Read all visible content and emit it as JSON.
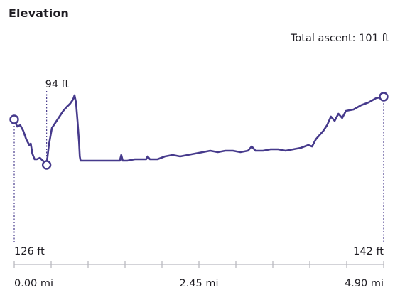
{
  "header": {
    "title": "Elevation",
    "total_ascent": "Total ascent: 101 ft"
  },
  "chart_data": {
    "type": "line",
    "title": "Elevation",
    "xlabel": "",
    "ylabel": "",
    "x_unit": "mi",
    "y_unit": "ft",
    "xlim": [
      0,
      4.9
    ],
    "ylim": [
      85,
      160
    ],
    "grid": false,
    "tick_labels": [
      "0.00 mi",
      "2.45 mi",
      "4.90 mi"
    ],
    "annotations": [
      {
        "label": "126 ft",
        "x": 0.0,
        "y": 126
      },
      {
        "label": "94 ft",
        "x": 0.43,
        "y": 94
      },
      {
        "label": "142 ft",
        "x": 4.9,
        "y": 142
      }
    ],
    "series": [
      {
        "color": "#463a8c",
        "x": [
          0.0,
          0.04,
          0.08,
          0.12,
          0.16,
          0.2,
          0.22,
          0.24,
          0.27,
          0.3,
          0.34,
          0.38,
          0.42,
          0.43,
          0.46,
          0.5,
          0.55,
          0.6,
          0.65,
          0.7,
          0.74,
          0.78,
          0.8,
          0.82,
          0.84,
          0.86,
          0.87,
          0.88,
          0.9,
          1.0,
          1.2,
          1.3,
          1.4,
          1.42,
          1.44,
          1.5,
          1.6,
          1.7,
          1.75,
          1.77,
          1.8,
          1.9,
          2.0,
          2.1,
          2.2,
          2.3,
          2.4,
          2.5,
          2.6,
          2.7,
          2.8,
          2.9,
          3.0,
          3.1,
          3.15,
          3.2,
          3.3,
          3.4,
          3.5,
          3.6,
          3.7,
          3.8,
          3.9,
          3.95,
          4.0,
          4.05,
          4.1,
          4.15,
          4.2,
          4.25,
          4.3,
          4.35,
          4.4,
          4.5,
          4.6,
          4.7,
          4.8,
          4.9
        ],
        "y": [
          126,
          121,
          122,
          118,
          112,
          108,
          109,
          102,
          98,
          98,
          99,
          97,
          95,
          94,
          108,
          120,
          124,
          128,
          132,
          135,
          137,
          140,
          143,
          138,
          125,
          110,
          100,
          97,
          97,
          97,
          97,
          97,
          97,
          101,
          97,
          97,
          98,
          98,
          98,
          100,
          98,
          98,
          100,
          101,
          100,
          101,
          102,
          103,
          104,
          103,
          104,
          104,
          103,
          104,
          107,
          104,
          104,
          105,
          105,
          104,
          105,
          106,
          108,
          107,
          112,
          115,
          118,
          122,
          128,
          125,
          130,
          127,
          132,
          133,
          136,
          138,
          141,
          142
        ]
      }
    ]
  }
}
